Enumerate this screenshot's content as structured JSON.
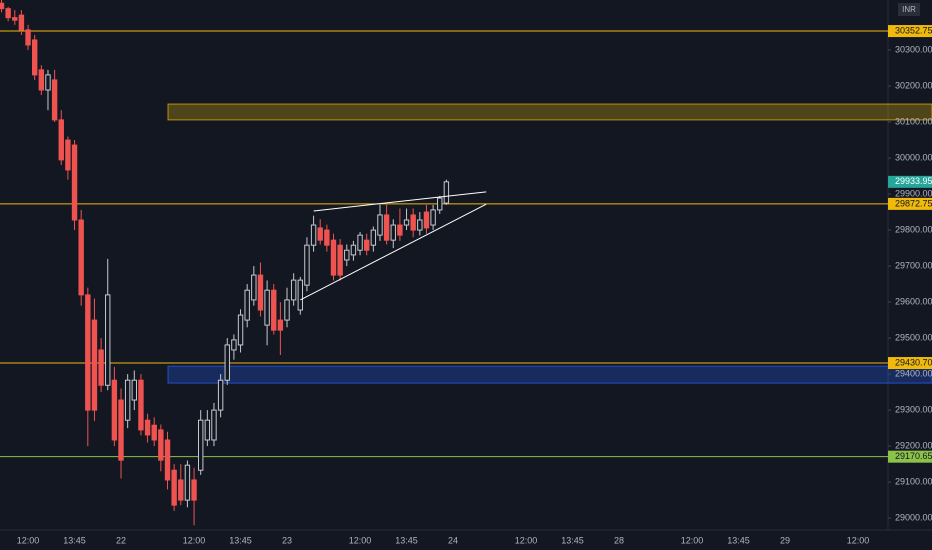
{
  "chart_data": {
    "type": "candlestick",
    "currency": "INR",
    "categories": [
      null,
      null,
      null,
      null,
      "12:00",
      null,
      null,
      null,
      null,
      null,
      null,
      "13:45",
      null,
      null,
      null,
      null,
      null,
      null,
      "22",
      null,
      null,
      null,
      null,
      null,
      null,
      null,
      null,
      null,
      null,
      "12:00",
      null,
      null,
      null,
      null,
      null,
      null,
      "13:45",
      null,
      null,
      null,
      null,
      null,
      null,
      "23",
      null,
      null,
      null,
      null,
      null,
      null,
      null,
      null,
      null,
      null,
      "12:00",
      null,
      null,
      null,
      null,
      null,
      null,
      "13:45",
      null,
      null,
      null,
      null,
      null,
      null,
      "24",
      null,
      null,
      null,
      null,
      null,
      null,
      null,
      null,
      null,
      null,
      "12:00",
      null,
      null,
      null,
      null,
      null,
      null,
      "13:45",
      null,
      null,
      null,
      null,
      null,
      null,
      "28",
      null,
      null,
      null,
      null,
      null,
      null,
      null,
      null,
      null,
      null,
      "12:00",
      null,
      null,
      null,
      null,
      null,
      null,
      "13:45",
      null,
      null,
      null,
      null,
      null,
      null,
      "29",
      null,
      null,
      null,
      null,
      null,
      null,
      null,
      null,
      null,
      null,
      "12:00",
      null,
      null,
      null
    ],
    "open": [
      30430,
      30415,
      30390,
      30397,
      30356,
      30328,
      30245,
      30189,
      30217,
      30106,
      30050,
      30036,
      29828,
      29620,
      29550,
      29467,
      29369,
      29383,
      29328,
      29272,
      29328,
      29383,
      29272,
      29258,
      29245,
      29217,
      29133,
      29106,
      29050,
      29106,
      29133,
      29217,
      29217,
      29300,
      29383,
      29467,
      29481,
      29550,
      29606,
      29675,
      29536,
      29633,
      29550,
      29550,
      29606,
      29578,
      29647,
      29758,
      29806,
      29800,
      29772,
      29758,
      29717,
      29731,
      29744,
      29772,
      29758,
      29786,
      29842,
      29772,
      29814,
      29814,
      29842,
      29800,
      29850,
      29814,
      29856,
      29875,
      null,
      null,
      null,
      null,
      null,
      null,
      null,
      null,
      null,
      null,
      null,
      null,
      null,
      null,
      null,
      null,
      null,
      null,
      null,
      null,
      null,
      null,
      null,
      null,
      null,
      null,
      null,
      null,
      null,
      null,
      null,
      null,
      null,
      null,
      null,
      null,
      null,
      null,
      null,
      null,
      null,
      null,
      null,
      null,
      null,
      null,
      null,
      null,
      null,
      null,
      null,
      null,
      null,
      null,
      null,
      null,
      null,
      null,
      null,
      null,
      null,
      null,
      null,
      null,
      null
    ],
    "high": [
      30439,
      30420,
      30411,
      30411,
      30370,
      30342,
      30258,
      30245,
      30245,
      30133,
      30060,
      30050,
      29856,
      29640,
      29610,
      29500,
      29720,
      29420,
      29360,
      29400,
      29410,
      29400,
      29290,
      29280,
      29260,
      29240,
      29150,
      29150,
      29160,
      29140,
      29300,
      29300,
      29320,
      29400,
      29500,
      29510,
      29580,
      29650,
      29700,
      29710,
      29660,
      29650,
      29600,
      29640,
      29680,
      29670,
      29780,
      29840,
      29830,
      29815,
      29790,
      29775,
      29760,
      29770,
      29795,
      29790,
      29810,
      29870,
      29870,
      29830,
      29860,
      29860,
      29860,
      29850,
      29870,
      29870,
      29895,
      29940,
      null,
      null,
      null,
      null,
      null,
      null,
      null,
      null,
      null,
      null,
      null,
      null,
      null,
      null,
      null,
      null,
      null,
      null,
      null,
      null,
      null,
      null,
      null,
      null,
      null,
      null,
      null,
      null,
      null,
      null,
      null,
      null,
      null,
      null,
      null,
      null,
      null,
      null,
      null,
      null,
      null,
      null,
      null,
      null,
      null,
      null,
      null,
      null,
      null,
      null,
      null,
      null,
      null,
      null,
      null,
      null,
      null,
      null,
      null,
      null,
      null,
      null,
      null,
      null,
      null
    ],
    "low": [
      30405,
      30380,
      30370,
      30342,
      30300,
      30217,
      30175,
      30133,
      30100,
      29981,
      29940,
      29800,
      29590,
      29200,
      29270,
      29350,
      29355,
      29200,
      29110,
      29250,
      29300,
      29230,
      29210,
      29200,
      29130,
      29080,
      29020,
      29036,
      29030,
      28980,
      29120,
      29200,
      29200,
      29280,
      29370,
      29440,
      29460,
      29530,
      29590,
      29560,
      29480,
      29510,
      29453,
      29530,
      29590,
      29565,
      29630,
      29740,
      29760,
      29740,
      29660,
      29660,
      29700,
      29715,
      29730,
      29730,
      29740,
      29770,
      29760,
      29750,
      29770,
      29800,
      29780,
      29785,
      29790,
      29800,
      29845,
      29870,
      null,
      null,
      null,
      null,
      null,
      null,
      null,
      null,
      null,
      null,
      null,
      null,
      null,
      null,
      null,
      null,
      null,
      null,
      null,
      null,
      null,
      null,
      null,
      null,
      null,
      null,
      null,
      null,
      null,
      null,
      null,
      null,
      null,
      null,
      null,
      null,
      null,
      null,
      null,
      null,
      null,
      null,
      null,
      null,
      null,
      null,
      null,
      null,
      null,
      null,
      null,
      null,
      null,
      null,
      null,
      null,
      null,
      null,
      null,
      null,
      null,
      null,
      null,
      null,
      null
    ],
    "close": [
      30415,
      30390,
      30383,
      30356,
      30314,
      30231,
      30189,
      30231,
      30106,
      29995,
      29967,
      29828,
      29620,
      29300,
      29300,
      29369,
      29620,
      29217,
      29161,
      29383,
      29383,
      29245,
      29231,
      29217,
      29161,
      29106,
      29036,
      29050,
      29147,
      29050,
      29272,
      29272,
      29300,
      29383,
      29481,
      29495,
      29564,
      29633,
      29675,
      29578,
      29633,
      29522,
      29522,
      29606,
      29661,
      29661,
      29758,
      29814,
      29772,
      29758,
      29675,
      29675,
      29744,
      29758,
      29786,
      29744,
      29800,
      29842,
      29772,
      29814,
      29786,
      29828,
      29800,
      29828,
      29806,
      29856,
      29889,
      29933.95,
      null,
      null,
      null,
      null,
      null,
      null,
      null,
      null,
      null,
      null,
      null,
      null,
      null,
      null,
      null,
      null,
      null,
      null,
      null,
      null,
      null,
      null,
      null,
      null,
      null,
      null,
      null,
      null,
      null,
      null,
      null,
      null,
      null,
      null,
      null,
      null,
      null,
      null,
      null,
      null,
      null,
      null,
      null,
      null,
      null,
      null,
      null,
      null,
      null,
      null,
      null,
      null,
      null,
      null,
      null,
      null,
      null,
      null,
      null,
      null,
      null,
      null,
      null,
      null,
      null
    ],
    "up_color": "#c5c8ce",
    "down_color": "#ef5350",
    "last_color": "#26a69a",
    "ylim": [
      28967,
      30439
    ],
    "yticks": [
      {
        "value": 29000,
        "label": "29000.00"
      },
      {
        "value": 29100,
        "label": "29100.00"
      },
      {
        "value": 29200,
        "label": "29200.00"
      },
      {
        "value": 29300,
        "label": "29300.00"
      },
      {
        "value": 29400,
        "label": "29400.00"
      },
      {
        "value": 29500,
        "label": "29500.00"
      },
      {
        "value": 29600,
        "label": "29600.00"
      },
      {
        "value": 29700,
        "label": "29700.00"
      },
      {
        "value": 29800,
        "label": "29800.00"
      },
      {
        "value": 29900,
        "label": "29900.00"
      },
      {
        "value": 30000,
        "label": "30000.00"
      },
      {
        "value": 30100,
        "label": "30100.00"
      },
      {
        "value": 30200,
        "label": "30200.00"
      },
      {
        "value": 30300,
        "label": "30300.00"
      }
    ],
    "levels": {
      "values": [
        30352.75,
        29872.75,
        29430.7,
        29170.65
      ],
      "value_labels": [
        "30352.75",
        "29872.75",
        "29430.70",
        "29170.65"
      ],
      "colors": [
        "#f0b90b",
        "#f0b90b",
        "#f0b90b",
        "#8bc34a"
      ]
    },
    "zones": [
      {
        "low": 30106,
        "high": 30150,
        "color": "#f0b90b"
      },
      {
        "low": 29375,
        "high": 29422,
        "color": "#2962ff"
      }
    ],
    "trendlines": [
      {
        "x": [
          47,
          73
        ],
        "y": [
          29853,
          29906
        ]
      },
      {
        "x": [
          45,
          73
        ],
        "y": [
          29606,
          29872
        ]
      }
    ],
    "trendline_color": "#ffffff"
  }
}
